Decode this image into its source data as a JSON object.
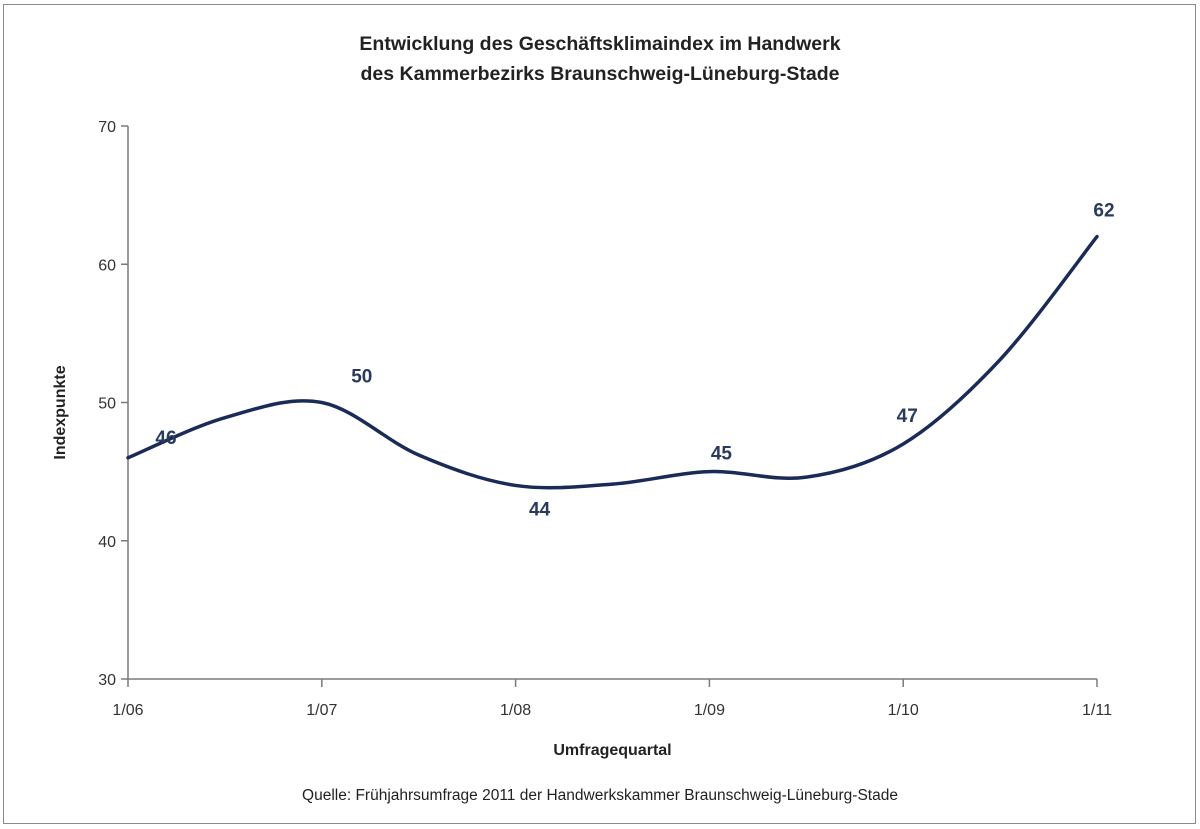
{
  "chart_data": {
    "type": "line",
    "title": [
      "Entwicklung des Geschäftsklimaindex im Handwerk",
      "des Kammerbezirks Braunschweig-Lüneburg-Stade"
    ],
    "xlabel": "Umfragequartal",
    "ylabel": "Indexpunkte",
    "ylim": [
      30,
      70
    ],
    "yticks": [
      30,
      40,
      50,
      60,
      70
    ],
    "xticks": [
      "1/06",
      "1/07",
      "1/08",
      "1/09",
      "1/10",
      "1/11"
    ],
    "grid": false,
    "line_color": "#1b2b57",
    "x": [
      "1/06",
      "3/06",
      "1/07",
      "3/07",
      "1/08",
      "3/08",
      "1/09",
      "3/09",
      "1/10",
      "3/10",
      "1/11"
    ],
    "values": [
      46,
      48.9,
      50,
      46.2,
      44,
      44.1,
      45,
      44.6,
      47,
      53.1,
      62
    ],
    "data_labels": [
      {
        "x": "1/06",
        "text": "46"
      },
      {
        "x": "1/07",
        "text": "50"
      },
      {
        "x": "1/08",
        "text": "44"
      },
      {
        "x": "1/09",
        "text": "45"
      },
      {
        "x": "1/10",
        "text": "47"
      },
      {
        "x": "1/11",
        "text": "62"
      }
    ]
  },
  "source": "Quelle: Frühjahrsumfrage 2011 der Handwerkskammer Braunschweig-Lüneburg-Stade"
}
